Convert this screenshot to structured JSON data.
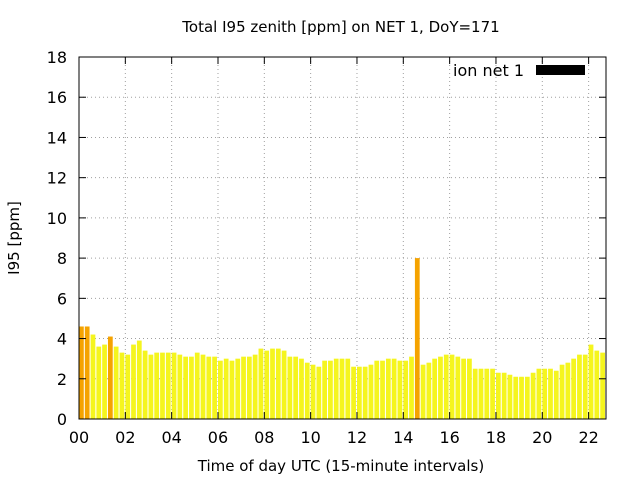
{
  "chart_data": {
    "type": "bar",
    "title": "Total I95 zenith [ppm] on NET 1, DoY=171",
    "xlabel": "Time of day UTC (15-minute intervals)",
    "ylabel": "I95 [ppm]",
    "xlim": [
      0,
      22.75
    ],
    "ylim": [
      0,
      18
    ],
    "interval_hours": 0.25,
    "yticks": [
      0,
      2,
      4,
      6,
      8,
      10,
      12,
      14,
      16,
      18
    ],
    "ytick_labels": [
      "0",
      "2",
      "4",
      "6",
      "8",
      "10",
      "12",
      "14",
      "16",
      "18"
    ],
    "xticks": [
      0,
      2,
      4,
      6,
      8,
      10,
      12,
      14,
      16,
      18,
      20,
      22
    ],
    "xtick_labels": [
      "00",
      "02",
      "04",
      "06",
      "08",
      "10",
      "12",
      "14",
      "16",
      "18",
      "20",
      "22"
    ],
    "grid": true,
    "legend_position": "top-right",
    "series": [
      {
        "name": "ion net 1",
        "legend_color": "#000000",
        "x": [
          0.0,
          0.25,
          0.5,
          0.75,
          1.0,
          1.25,
          1.5,
          1.75,
          2.0,
          2.25,
          2.5,
          2.75,
          3.0,
          3.25,
          3.5,
          3.75,
          4.0,
          4.25,
          4.5,
          4.75,
          5.0,
          5.25,
          5.5,
          5.75,
          6.0,
          6.25,
          6.5,
          6.75,
          7.0,
          7.25,
          7.5,
          7.75,
          8.0,
          8.25,
          8.5,
          8.75,
          9.0,
          9.25,
          9.5,
          9.75,
          10.0,
          10.25,
          10.5,
          10.75,
          11.0,
          11.25,
          11.5,
          11.75,
          12.0,
          12.25,
          12.5,
          12.75,
          13.0,
          13.25,
          13.5,
          13.75,
          14.0,
          14.25,
          14.5,
          14.75,
          15.0,
          15.25,
          15.5,
          15.75,
          16.0,
          16.25,
          16.5,
          16.75,
          17.0,
          17.25,
          17.5,
          17.75,
          18.0,
          18.25,
          18.5,
          18.75,
          19.0,
          19.25,
          19.5,
          19.75,
          20.0,
          20.25,
          20.5,
          20.75,
          21.0,
          21.25,
          21.5,
          21.75,
          22.0,
          22.25,
          22.5
        ],
        "values": [
          4.6,
          4.6,
          4.2,
          3.6,
          3.7,
          4.1,
          3.6,
          3.3,
          3.2,
          3.7,
          3.9,
          3.4,
          3.2,
          3.3,
          3.3,
          3.3,
          3.3,
          3.2,
          3.1,
          3.1,
          3.3,
          3.2,
          3.1,
          3.1,
          2.9,
          3.0,
          2.9,
          3.0,
          3.1,
          3.1,
          3.2,
          3.5,
          3.4,
          3.5,
          3.5,
          3.4,
          3.1,
          3.1,
          3.0,
          2.8,
          2.7,
          2.6,
          2.9,
          2.9,
          3.0,
          3.0,
          3.0,
          2.6,
          2.6,
          2.6,
          2.7,
          2.9,
          2.9,
          3.0,
          3.0,
          2.9,
          2.9,
          3.1,
          8.0,
          2.7,
          2.8,
          3.0,
          3.1,
          3.2,
          3.2,
          3.1,
          3.0,
          3.0,
          2.5,
          2.5,
          2.5,
          2.5,
          2.3,
          2.3,
          2.2,
          2.1,
          2.1,
          2.1,
          2.3,
          2.5,
          2.5,
          2.5,
          2.4,
          2.7,
          2.8,
          3.0,
          3.2,
          3.2,
          3.7,
          3.4,
          3.3
        ],
        "highlight_color": "#f5a300",
        "normal_color": "#f5f51e",
        "highlighted_x": [
          0.0,
          0.25,
          1.25,
          14.5
        ]
      }
    ]
  }
}
